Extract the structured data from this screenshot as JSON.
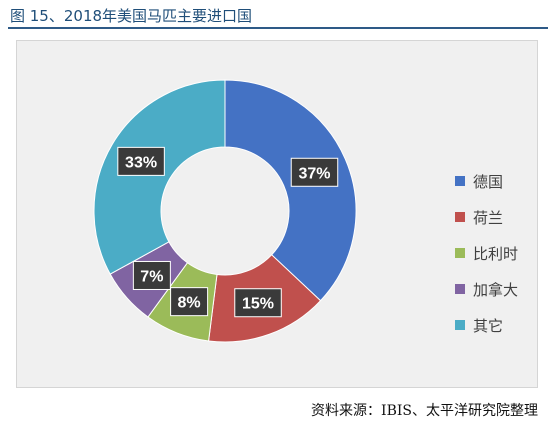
{
  "title": "图 15、2018年美国马匹主要进口国",
  "source": "资料来源：IBIS、太平洋研究院整理",
  "chart_data": {
    "type": "pie",
    "variant": "donut",
    "title": "",
    "categories": [
      "德国",
      "荷兰",
      "比利时",
      "加拿大",
      "其它"
    ],
    "values": [
      37,
      15,
      8,
      7,
      33
    ],
    "labels": [
      "37%",
      "15%",
      "8%",
      "7%",
      "33%"
    ],
    "colors": [
      "#4472c4",
      "#c0504d",
      "#9bbb59",
      "#8064a2",
      "#4bacc6"
    ],
    "legend": "right"
  }
}
